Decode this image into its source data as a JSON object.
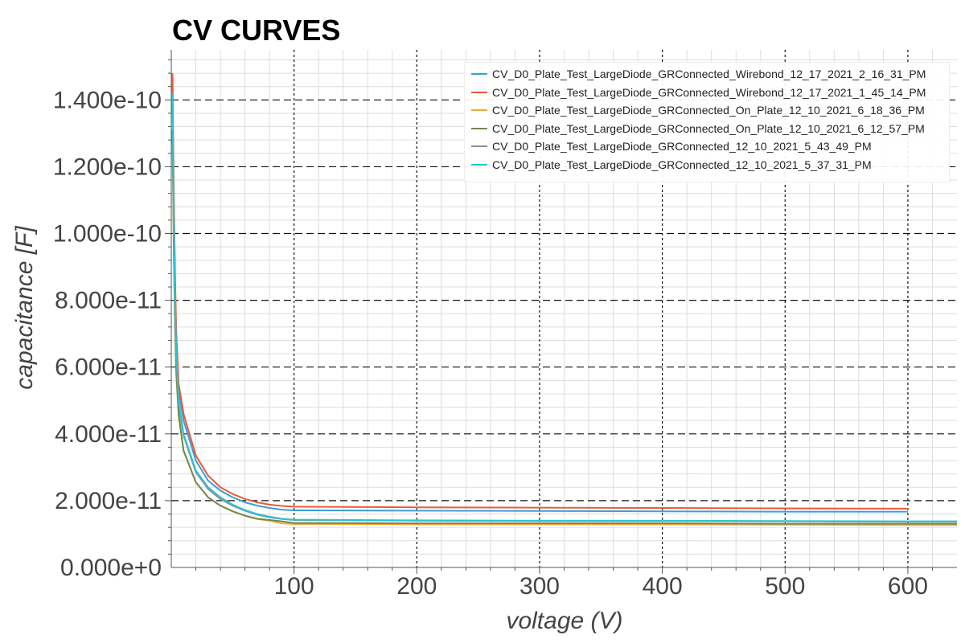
{
  "chart_data": {
    "type": "line",
    "title": "CV CURVES",
    "xlabel": "voltage (V)",
    "ylabel": "capacitance [F]",
    "xlim": [
      0,
      640
    ],
    "ylim": [
      0,
      1.55e-10
    ],
    "x_ticks": [
      {
        "value": 100,
        "label": "100"
      },
      {
        "value": 200,
        "label": "200"
      },
      {
        "value": 300,
        "label": "300"
      },
      {
        "value": 400,
        "label": "400"
      },
      {
        "value": 500,
        "label": "500"
      },
      {
        "value": 600,
        "label": "600"
      }
    ],
    "y_ticks": [
      {
        "value": 0,
        "label": "0.000e+0"
      },
      {
        "value": 2e-11,
        "label": "2.000e-11"
      },
      {
        "value": 4e-11,
        "label": "4.000e-11"
      },
      {
        "value": 6e-11,
        "label": "6.000e-11"
      },
      {
        "value": 8e-11,
        "label": "8.000e-11"
      },
      {
        "value": 1e-10,
        "label": "1.000e-10"
      },
      {
        "value": 1.2e-10,
        "label": "1.200e-10"
      },
      {
        "value": 1.4e-10,
        "label": "1.400e-10"
      }
    ],
    "grid": true,
    "legend_position": "top-right",
    "series": [
      {
        "name": "CV_D0_Plate_Test_LargeDiode_GRConnected_Wirebond_12_17_2021_2_16_31_PM",
        "color": "#3a9fd6",
        "points": [
          [
            1,
            1.45e-10
          ],
          [
            2,
            1.1e-10
          ],
          [
            3,
            8.6e-11
          ],
          [
            4,
            6.9e-11
          ],
          [
            6,
            5.3e-11
          ],
          [
            10,
            4.4e-11
          ],
          [
            20,
            3.2e-11
          ],
          [
            30,
            2.6e-11
          ],
          [
            40,
            2.3e-11
          ],
          [
            50,
            2.1e-11
          ],
          [
            60,
            1.95e-11
          ],
          [
            70,
            1.85e-11
          ],
          [
            80,
            1.78e-11
          ],
          [
            90,
            1.73e-11
          ],
          [
            100,
            1.71e-11
          ],
          [
            200,
            1.7e-11
          ],
          [
            300,
            1.69e-11
          ],
          [
            400,
            1.68e-11
          ],
          [
            500,
            1.67e-11
          ],
          [
            600,
            1.67e-11
          ]
        ]
      },
      {
        "name": "CV_D0_Plate_Test_LargeDiode_GRConnected_Wirebond_12_17_2021_1_45_14_PM",
        "color": "#ea5a3a",
        "points": [
          [
            1,
            1.48e-10
          ],
          [
            2,
            1.14e-10
          ],
          [
            3,
            8.9e-11
          ],
          [
            4,
            7.1e-11
          ],
          [
            6,
            5.5e-11
          ],
          [
            10,
            4.6e-11
          ],
          [
            20,
            3.35e-11
          ],
          [
            30,
            2.75e-11
          ],
          [
            40,
            2.4e-11
          ],
          [
            50,
            2.2e-11
          ],
          [
            60,
            2.05e-11
          ],
          [
            70,
            1.95e-11
          ],
          [
            80,
            1.88e-11
          ],
          [
            90,
            1.84e-11
          ],
          [
            100,
            1.82e-11
          ],
          [
            200,
            1.8e-11
          ],
          [
            300,
            1.79e-11
          ],
          [
            400,
            1.78e-11
          ],
          [
            500,
            1.77e-11
          ],
          [
            600,
            1.76e-11
          ]
        ]
      },
      {
        "name": "CV_D0_Plate_Test_LargeDiode_GRConnected_On_Plate_12_10_2021_6_18_36_PM",
        "color": "#f2a93b",
        "points": [
          [
            1,
            1.3e-10
          ],
          [
            2,
            9.6e-11
          ],
          [
            3,
            7.3e-11
          ],
          [
            4,
            5.8e-11
          ],
          [
            6,
            4.5e-11
          ],
          [
            10,
            3.5e-11
          ],
          [
            20,
            2.55e-11
          ],
          [
            30,
            2.1e-11
          ],
          [
            40,
            1.85e-11
          ],
          [
            50,
            1.68e-11
          ],
          [
            60,
            1.55e-11
          ],
          [
            70,
            1.45e-11
          ],
          [
            80,
            1.4e-11
          ],
          [
            90,
            1.32e-11
          ],
          [
            100,
            1.3e-11
          ],
          [
            200,
            1.29e-11
          ],
          [
            300,
            1.29e-11
          ],
          [
            400,
            1.29e-11
          ],
          [
            500,
            1.28e-11
          ],
          [
            600,
            1.27e-11
          ],
          [
            640,
            1.27e-11
          ]
        ]
      },
      {
        "name": "CV_D0_Plate_Test_LargeDiode_GRConnected_On_Plate_12_10_2021_6_12_57_PM",
        "color": "#6f8b4e",
        "points": [
          [
            1,
            1.31e-10
          ],
          [
            2,
            9.7e-11
          ],
          [
            3,
            7.4e-11
          ],
          [
            4,
            5.9e-11
          ],
          [
            6,
            4.6e-11
          ],
          [
            10,
            3.5e-11
          ],
          [
            20,
            2.55e-11
          ],
          [
            30,
            2.1e-11
          ],
          [
            40,
            1.85e-11
          ],
          [
            50,
            1.68e-11
          ],
          [
            60,
            1.55e-11
          ],
          [
            70,
            1.46e-11
          ],
          [
            80,
            1.42e-11
          ],
          [
            90,
            1.38e-11
          ],
          [
            100,
            1.33e-11
          ],
          [
            200,
            1.32e-11
          ],
          [
            300,
            1.32e-11
          ],
          [
            400,
            1.32e-11
          ],
          [
            500,
            1.31e-11
          ],
          [
            600,
            1.31e-11
          ],
          [
            640,
            1.31e-11
          ]
        ]
      },
      {
        "name": "CV_D0_Plate_Test_LargeDiode_GRConnected_12_10_2021_5_43_49_PM",
        "color": "#8e8e8e",
        "points": [
          [
            1,
            1.4e-10
          ],
          [
            2,
            1.04e-10
          ],
          [
            3,
            8e-11
          ],
          [
            4,
            6.4e-11
          ],
          [
            6,
            4.9e-11
          ],
          [
            10,
            3.95e-11
          ],
          [
            20,
            2.85e-11
          ],
          [
            30,
            2.35e-11
          ],
          [
            40,
            2.05e-11
          ],
          [
            50,
            1.85e-11
          ],
          [
            60,
            1.7e-11
          ],
          [
            70,
            1.58e-11
          ],
          [
            80,
            1.5e-11
          ],
          [
            90,
            1.45e-11
          ],
          [
            100,
            1.42e-11
          ],
          [
            200,
            1.4e-11
          ],
          [
            300,
            1.39e-11
          ],
          [
            400,
            1.39e-11
          ],
          [
            500,
            1.38e-11
          ],
          [
            600,
            1.37e-11
          ],
          [
            640,
            1.37e-11
          ]
        ]
      },
      {
        "name": "CV_D0_Plate_Test_LargeDiode_GRConnected_12_10_2021_5_37_31_PM",
        "color": "#29c4d4",
        "points": [
          [
            1,
            1.42e-10
          ],
          [
            2,
            1.06e-10
          ],
          [
            3,
            8.1e-11
          ],
          [
            4,
            6.5e-11
          ],
          [
            6,
            5e-11
          ],
          [
            10,
            4e-11
          ],
          [
            20,
            2.9e-11
          ],
          [
            30,
            2.4e-11
          ],
          [
            40,
            2.1e-11
          ],
          [
            50,
            1.88e-11
          ],
          [
            60,
            1.72e-11
          ],
          [
            70,
            1.6e-11
          ],
          [
            80,
            1.52e-11
          ],
          [
            90,
            1.46e-11
          ],
          [
            100,
            1.43e-11
          ],
          [
            200,
            1.41e-11
          ],
          [
            300,
            1.4e-11
          ],
          [
            400,
            1.4e-11
          ],
          [
            500,
            1.39e-11
          ],
          [
            600,
            1.38e-11
          ],
          [
            640,
            1.38e-11
          ]
        ]
      }
    ]
  }
}
